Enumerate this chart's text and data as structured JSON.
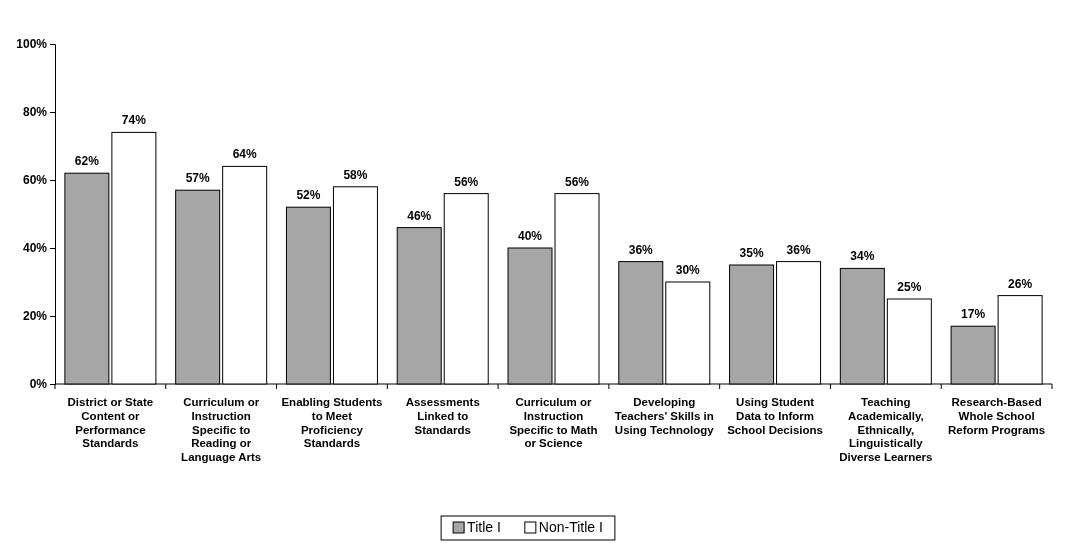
{
  "chart_data": {
    "type": "bar",
    "categories": [
      "District or State Content or Performance Standards",
      "Curriculum or Instruction Specific to Reading or Language Arts",
      "Enabling Students to Meet Proficiency Standards",
      "Assessments Linked to Standards",
      "Curriculum or Instruction Specific to Math or Science",
      "Developing Teachers' Skills in Using Technology",
      "Using Student Data to Inform School Decisions",
      "Teaching Academically, Ethnically, Linguistically Diverse Learners",
      "Research-Based Whole School Reform Programs"
    ],
    "series": [
      {
        "name": "Title I",
        "color": "#a6a6a6",
        "values": [
          62,
          57,
          52,
          46,
          40,
          36,
          35,
          34,
          17
        ],
        "value_labels": [
          "62%",
          "57%",
          "52%",
          "46%",
          "40%",
          "36%",
          "35%",
          "34%",
          "17%"
        ]
      },
      {
        "name": "Non-Title I",
        "color": "#ffffff",
        "values": [
          74,
          64,
          58,
          56,
          56,
          30,
          36,
          25,
          26
        ],
        "value_labels": [
          "74%",
          "64%",
          "58%",
          "56%",
          "56%",
          "30%",
          "36%",
          "25%",
          "26%"
        ]
      }
    ],
    "ylim": [
      0,
      100
    ],
    "yticks": [
      {
        "value": 0,
        "label": "0%"
      },
      {
        "value": 20,
        "label": "20%"
      },
      {
        "value": 40,
        "label": "40%"
      },
      {
        "value": 60,
        "label": "60%"
      },
      {
        "value": 80,
        "label": "80%"
      },
      {
        "value": 100,
        "label": "100%"
      }
    ],
    "grid": false,
    "legend": "bottom"
  }
}
